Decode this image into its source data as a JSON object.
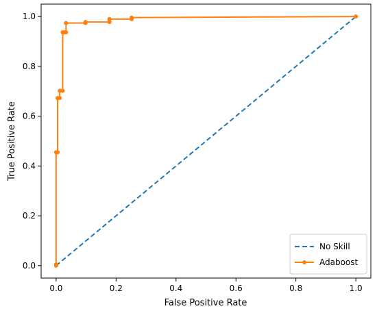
{
  "chart_data": {
    "type": "line",
    "title": "",
    "xlabel": "False Positive Rate",
    "ylabel": "True Positive Rate",
    "xlim": [
      -0.05,
      1.05
    ],
    "ylim": [
      -0.05,
      1.05
    ],
    "xticks": [
      "0.0",
      "0.2",
      "0.4",
      "0.6",
      "0.8",
      "1.0"
    ],
    "yticks": [
      "0.0",
      "0.2",
      "0.4",
      "0.6",
      "0.8",
      "1.0"
    ],
    "grid": false,
    "legend_position": "bottom-right",
    "series": [
      {
        "name": "No Skill",
        "style": "dashed",
        "color": "#1f77b4",
        "markers": false,
        "x": [
          0.0,
          1.0
        ],
        "y": [
          0.0,
          1.0
        ]
      },
      {
        "name": "Adaboost",
        "style": "solid",
        "color": "#ff7f0e",
        "markers": true,
        "x": [
          0.0,
          0.0,
          0.0,
          0.005,
          0.005,
          0.012,
          0.012,
          0.022,
          0.022,
          0.028,
          0.028,
          0.033,
          0.033,
          0.098,
          0.098,
          0.178,
          0.178,
          0.252,
          0.252,
          1.0
        ],
        "y": [
          0.0,
          0.005,
          0.455,
          0.455,
          0.673,
          0.673,
          0.702,
          0.702,
          0.937,
          0.937,
          0.937,
          0.937,
          0.974,
          0.974,
          0.978,
          0.978,
          0.99,
          0.99,
          0.996,
          1.0
        ]
      }
    ]
  }
}
